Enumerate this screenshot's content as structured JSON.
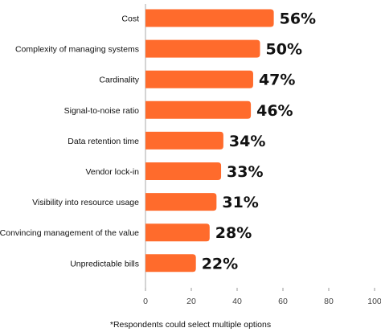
{
  "chart_data": {
    "type": "bar",
    "orientation": "horizontal",
    "categories": [
      "Cost",
      "Complexity of managing systems",
      "Cardinality",
      "Signal-to-noise ratio",
      "Data retention time",
      "Vendor lock-in",
      "Visibility into resource usage",
      "Convincing management of the value",
      "Unpredictable bills"
    ],
    "values": [
      56,
      50,
      47,
      46,
      34,
      33,
      31,
      28,
      22
    ],
    "value_labels": [
      "56%",
      "50%",
      "47%",
      "46%",
      "34%",
      "33%",
      "31%",
      "28%",
      "22%"
    ],
    "xlim": [
      0,
      100
    ],
    "x_ticks": [
      0,
      20,
      40,
      60,
      80,
      100
    ],
    "x_tick_labels": [
      "0",
      "20",
      "40",
      "60",
      "80",
      "100"
    ],
    "grid": false,
    "bar_color": "#ff6b2c",
    "footnote": "*Respondents could select multiple options"
  }
}
